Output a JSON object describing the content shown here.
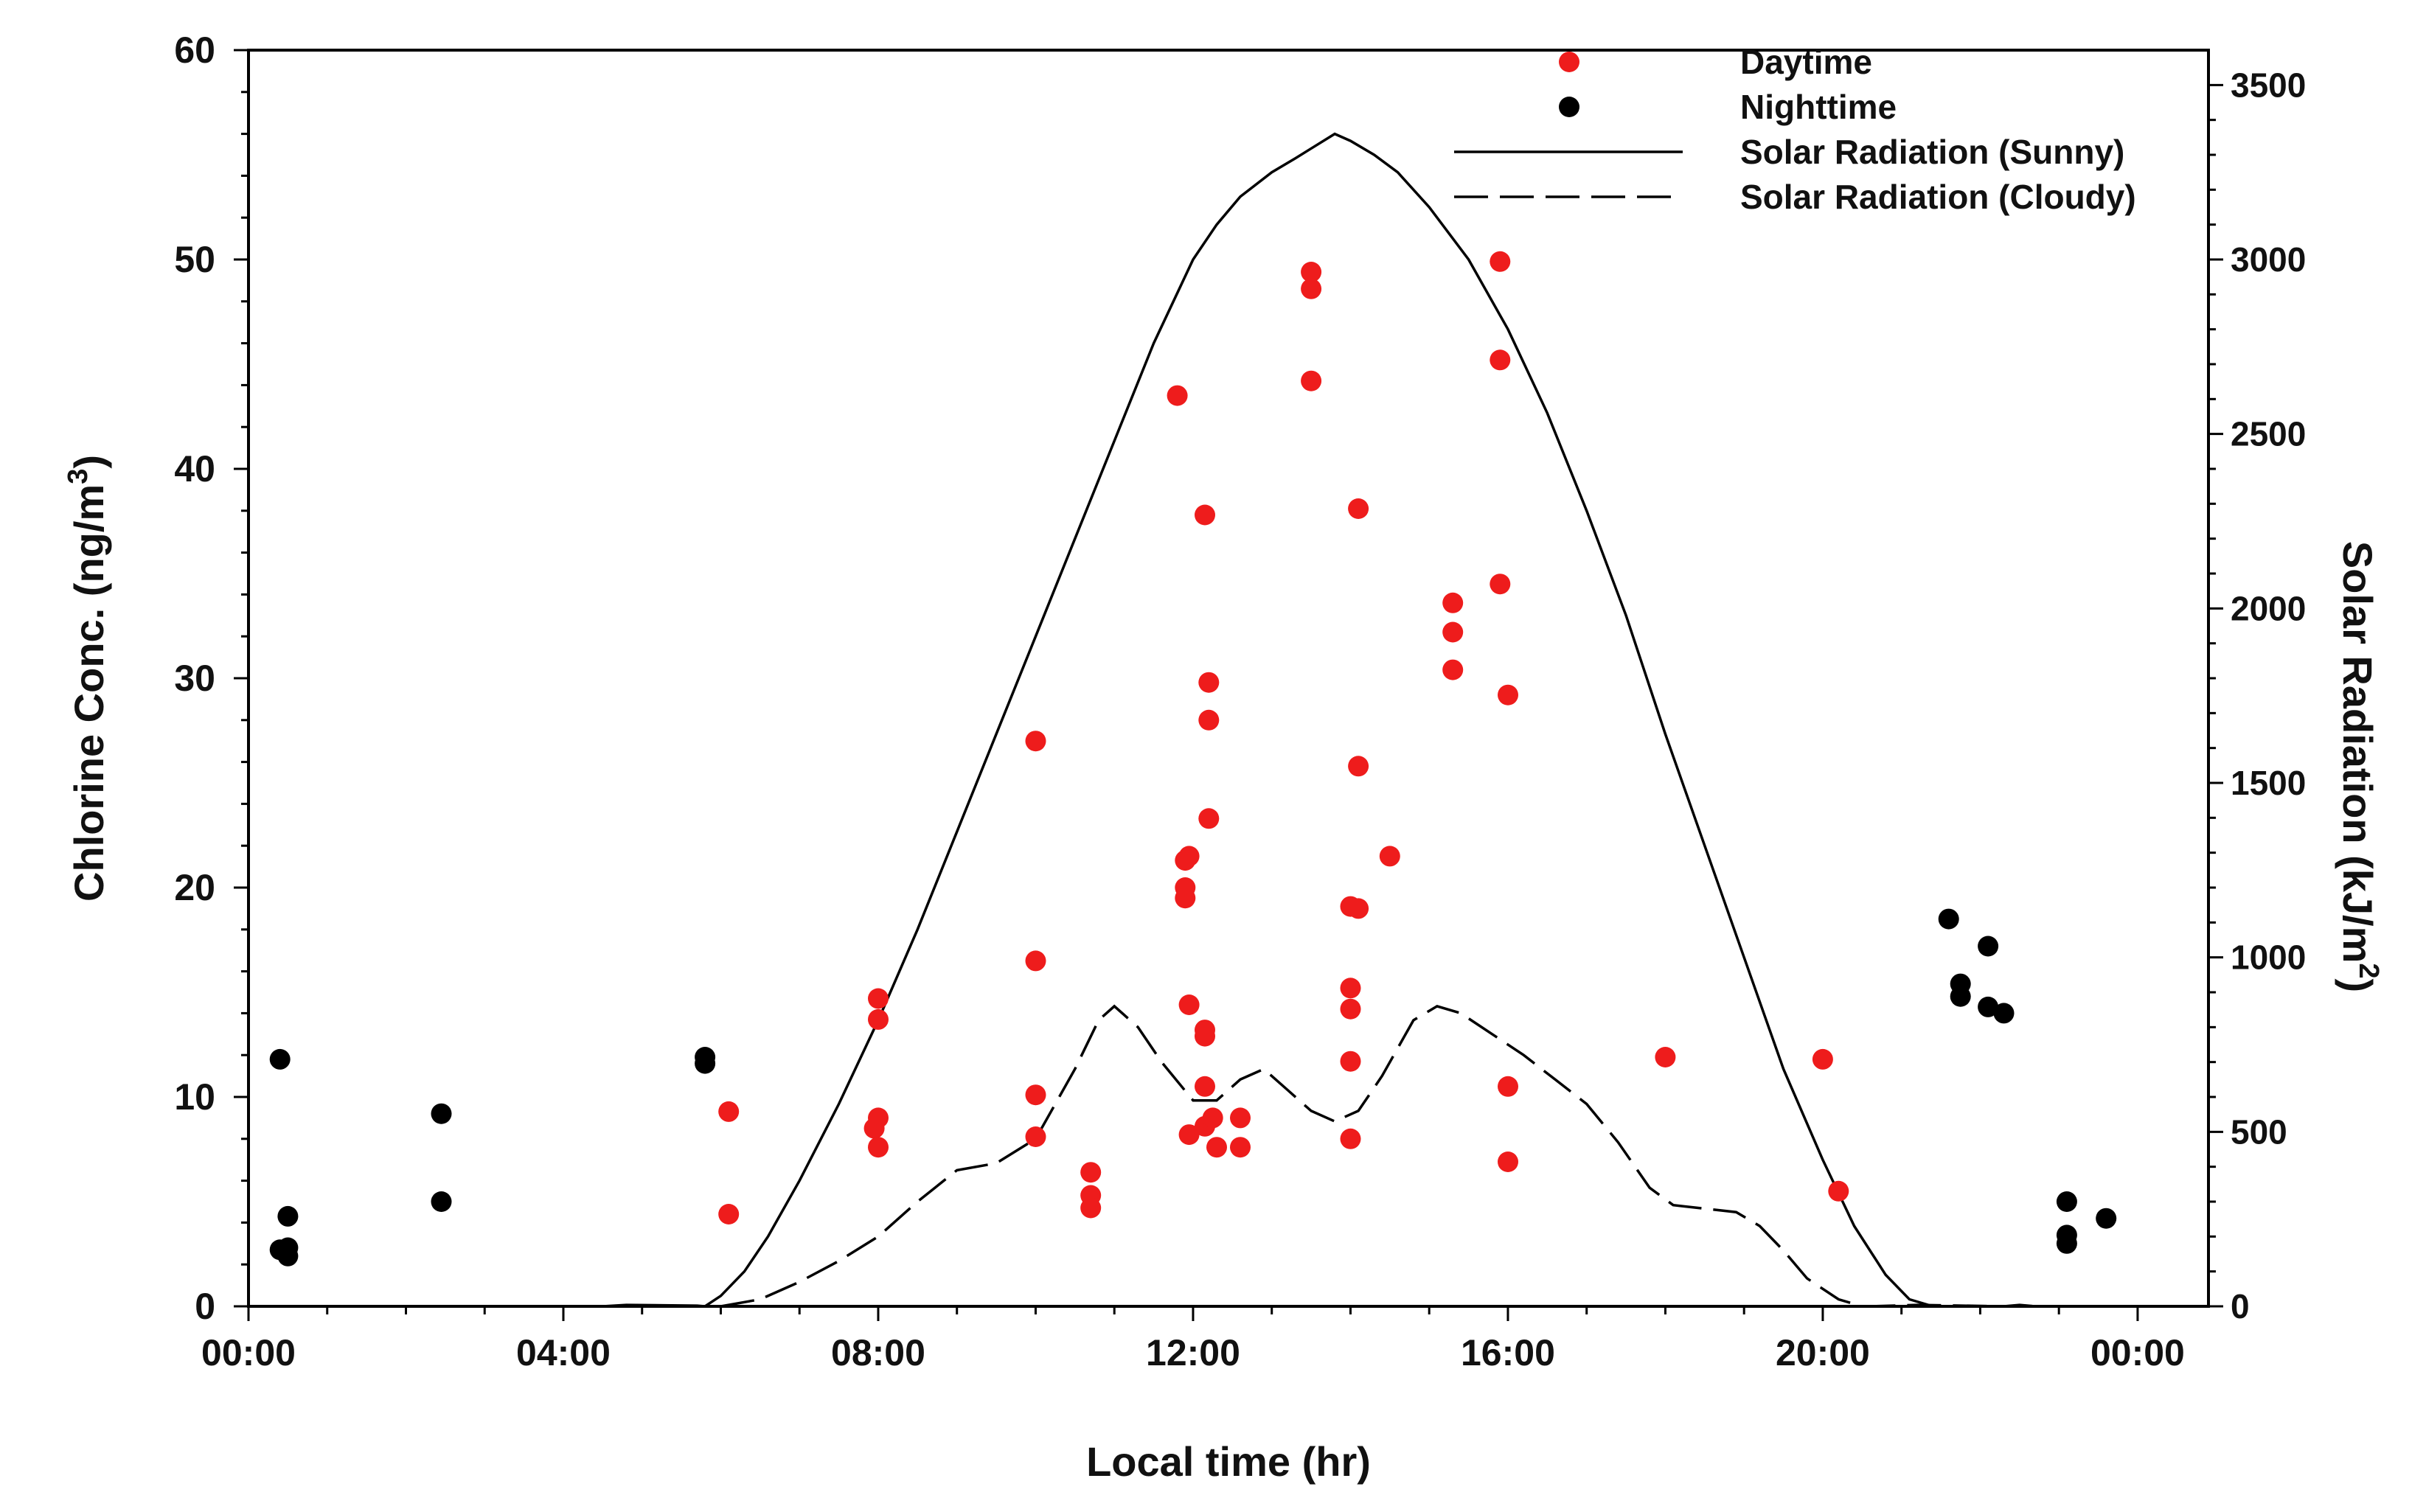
{
  "chart_data": {
    "type": "scatter",
    "title": "",
    "xlabel": "Local time (hr)",
    "ylabel": "Chlorine Conc. (ng/m",
    "ylabel_sup": "3",
    "ylabel_close": ")",
    "y2label": "Solar Radiation (kJ/m",
    "y2label_sup": "2",
    "y2label_close": ")",
    "xlim": [
      0,
      24.9
    ],
    "ylim": [
      0,
      60
    ],
    "y2lim": [
      0,
      3600
    ],
    "x_ticks": [
      {
        "value": 0,
        "label": "00:00"
      },
      {
        "value": 4,
        "label": "04:00"
      },
      {
        "value": 8,
        "label": "08:00"
      },
      {
        "value": 12,
        "label": "12:00"
      },
      {
        "value": 16,
        "label": "16:00"
      },
      {
        "value": 20,
        "label": "20:00"
      },
      {
        "value": 24,
        "label": "00:00"
      }
    ],
    "y_ticks": [
      {
        "value": 0,
        "label": "0"
      },
      {
        "value": 10,
        "label": "10"
      },
      {
        "value": 20,
        "label": "20"
      },
      {
        "value": 30,
        "label": "30"
      },
      {
        "value": 40,
        "label": "40"
      },
      {
        "value": 50,
        "label": "50"
      },
      {
        "value": 60,
        "label": "60"
      }
    ],
    "y2_ticks": [
      {
        "value": 0,
        "label": "0"
      },
      {
        "value": 500,
        "label": "500"
      },
      {
        "value": 1000,
        "label": "1000"
      },
      {
        "value": 1500,
        "label": "1500"
      },
      {
        "value": 2000,
        "label": "2000"
      },
      {
        "value": 2500,
        "label": "2500"
      },
      {
        "value": 3000,
        "label": "3000"
      },
      {
        "value": 3500,
        "label": "3500"
      }
    ],
    "legend": {
      "position": "top-right",
      "entries": [
        {
          "label": "Daytime",
          "marker": "dot",
          "color": "#ee1c1c"
        },
        {
          "label": "Nighttime",
          "marker": "dot",
          "color": "#000000"
        },
        {
          "label": "Solar Radiation (Sunny)",
          "marker": "solid-line",
          "color": "#000000"
        },
        {
          "label": "Solar Radiation (Cloudy)",
          "marker": "dashed-line",
          "color": "#000000"
        }
      ]
    },
    "series": [
      {
        "name": "Daytime",
        "kind": "scatter",
        "axis": "left",
        "color": "#ee1c1c",
        "points": [
          [
            6.1,
            9.3
          ],
          [
            6.1,
            4.4
          ],
          [
            8.0,
            14.7
          ],
          [
            8.0,
            13.7
          ],
          [
            8.0,
            9.0
          ],
          [
            7.95,
            8.5
          ],
          [
            8.0,
            7.6
          ],
          [
            10.0,
            27.0
          ],
          [
            10.0,
            16.5
          ],
          [
            10.0,
            10.1
          ],
          [
            10.0,
            8.1
          ],
          [
            10.7,
            6.4
          ],
          [
            10.7,
            5.3
          ],
          [
            10.7,
            4.7
          ],
          [
            11.8,
            43.5
          ],
          [
            11.9,
            21.3
          ],
          [
            11.95,
            21.5
          ],
          [
            11.9,
            20.0
          ],
          [
            11.9,
            19.5
          ],
          [
            11.95,
            14.4
          ],
          [
            11.95,
            8.2
          ],
          [
            12.15,
            37.8
          ],
          [
            12.2,
            29.8
          ],
          [
            12.2,
            28.0
          ],
          [
            12.2,
            23.3
          ],
          [
            12.15,
            13.2
          ],
          [
            12.15,
            12.9
          ],
          [
            12.15,
            10.5
          ],
          [
            12.15,
            8.6
          ],
          [
            12.25,
            9.0
          ],
          [
            12.3,
            7.6
          ],
          [
            12.6,
            9.0
          ],
          [
            12.6,
            7.6
          ],
          [
            13.5,
            49.4
          ],
          [
            13.5,
            48.6
          ],
          [
            13.5,
            44.2
          ],
          [
            14.1,
            38.1
          ],
          [
            14.1,
            25.8
          ],
          [
            14.0,
            19.1
          ],
          [
            14.1,
            19.0
          ],
          [
            14.0,
            15.2
          ],
          [
            14.0,
            14.2
          ],
          [
            14.0,
            11.7
          ],
          [
            14.0,
            8.0
          ],
          [
            14.5,
            21.5
          ],
          [
            15.3,
            33.6
          ],
          [
            15.3,
            32.2
          ],
          [
            15.3,
            30.4
          ],
          [
            15.9,
            49.9
          ],
          [
            15.9,
            45.2
          ],
          [
            15.9,
            34.5
          ],
          [
            16.0,
            29.2
          ],
          [
            16.0,
            10.5
          ],
          [
            16.0,
            6.9
          ],
          [
            18.0,
            11.9
          ],
          [
            20.0,
            11.8
          ],
          [
            20.2,
            5.5
          ]
        ]
      },
      {
        "name": "Nighttime",
        "kind": "scatter",
        "axis": "left",
        "color": "#000000",
        "points": [
          [
            0.4,
            11.8
          ],
          [
            0.5,
            4.3
          ],
          [
            0.5,
            2.8
          ],
          [
            0.4,
            2.7
          ],
          [
            0.5,
            2.4
          ],
          [
            2.45,
            9.2
          ],
          [
            2.45,
            5.0
          ],
          [
            5.8,
            11.9
          ],
          [
            5.8,
            11.6
          ],
          [
            21.6,
            18.5
          ],
          [
            21.75,
            15.4
          ],
          [
            21.75,
            14.8
          ],
          [
            22.1,
            17.2
          ],
          [
            22.1,
            14.3
          ],
          [
            22.3,
            14.0
          ],
          [
            23.1,
            5.0
          ],
          [
            23.1,
            3.4
          ],
          [
            23.1,
            3.0
          ],
          [
            23.6,
            4.2
          ]
        ]
      },
      {
        "name": "Solar Radiation (Sunny)",
        "kind": "line",
        "style": "solid",
        "axis": "right",
        "color": "#000000",
        "points": [
          [
            4.5,
            0
          ],
          [
            4.8,
            4
          ],
          [
            5.7,
            2
          ],
          [
            5.8,
            0
          ],
          [
            6.0,
            30
          ],
          [
            6.3,
            100
          ],
          [
            6.6,
            200
          ],
          [
            7.0,
            360
          ],
          [
            7.5,
            580
          ],
          [
            8.0,
            820
          ],
          [
            8.5,
            1080
          ],
          [
            9.0,
            1360
          ],
          [
            9.5,
            1640
          ],
          [
            10.0,
            1920
          ],
          [
            10.5,
            2200
          ],
          [
            11.0,
            2480
          ],
          [
            11.5,
            2760
          ],
          [
            12.0,
            3000
          ],
          [
            12.3,
            3100
          ],
          [
            12.6,
            3180
          ],
          [
            13.0,
            3250
          ],
          [
            13.3,
            3290
          ],
          [
            13.8,
            3360
          ],
          [
            14.0,
            3340
          ],
          [
            14.3,
            3300
          ],
          [
            14.6,
            3250
          ],
          [
            15.0,
            3150
          ],
          [
            15.5,
            3000
          ],
          [
            16.0,
            2800
          ],
          [
            16.5,
            2560
          ],
          [
            17.0,
            2280
          ],
          [
            17.5,
            1980
          ],
          [
            18.0,
            1640
          ],
          [
            18.5,
            1320
          ],
          [
            19.0,
            1000
          ],
          [
            19.5,
            680
          ],
          [
            20.0,
            420
          ],
          [
            20.4,
            230
          ],
          [
            20.8,
            90
          ],
          [
            21.1,
            20
          ],
          [
            21.4,
            0
          ]
        ]
      },
      {
        "name": "Solar Radiation (Cloudy)",
        "kind": "line",
        "style": "dashed",
        "axis": "right",
        "color": "#000000",
        "points": [
          [
            6.0,
            0
          ],
          [
            6.5,
            20
          ],
          [
            7.0,
            70
          ],
          [
            7.5,
            130
          ],
          [
            8.0,
            200
          ],
          [
            8.5,
            300
          ],
          [
            9.0,
            390
          ],
          [
            9.5,
            410
          ],
          [
            10.0,
            480
          ],
          [
            10.5,
            680
          ],
          [
            10.8,
            820
          ],
          [
            11.0,
            860
          ],
          [
            11.3,
            800
          ],
          [
            11.6,
            700
          ],
          [
            12.0,
            590
          ],
          [
            12.3,
            590
          ],
          [
            12.6,
            650
          ],
          [
            12.9,
            680
          ],
          [
            13.2,
            620
          ],
          [
            13.5,
            560
          ],
          [
            13.8,
            530
          ],
          [
            14.1,
            560
          ],
          [
            14.4,
            660
          ],
          [
            14.8,
            820
          ],
          [
            15.1,
            860
          ],
          [
            15.4,
            840
          ],
          [
            15.8,
            780
          ],
          [
            16.2,
            720
          ],
          [
            16.6,
            650
          ],
          [
            17.0,
            580
          ],
          [
            17.4,
            470
          ],
          [
            17.8,
            340
          ],
          [
            18.1,
            290
          ],
          [
            18.5,
            280
          ],
          [
            18.9,
            270
          ],
          [
            19.2,
            230
          ],
          [
            19.5,
            160
          ],
          [
            19.8,
            80
          ],
          [
            20.2,
            20
          ],
          [
            20.5,
            0
          ],
          [
            20.6,
            0
          ],
          [
            21.2,
            4
          ],
          [
            22.3,
            0
          ],
          [
            22.5,
            4
          ],
          [
            22.7,
            0
          ]
        ]
      }
    ]
  }
}
